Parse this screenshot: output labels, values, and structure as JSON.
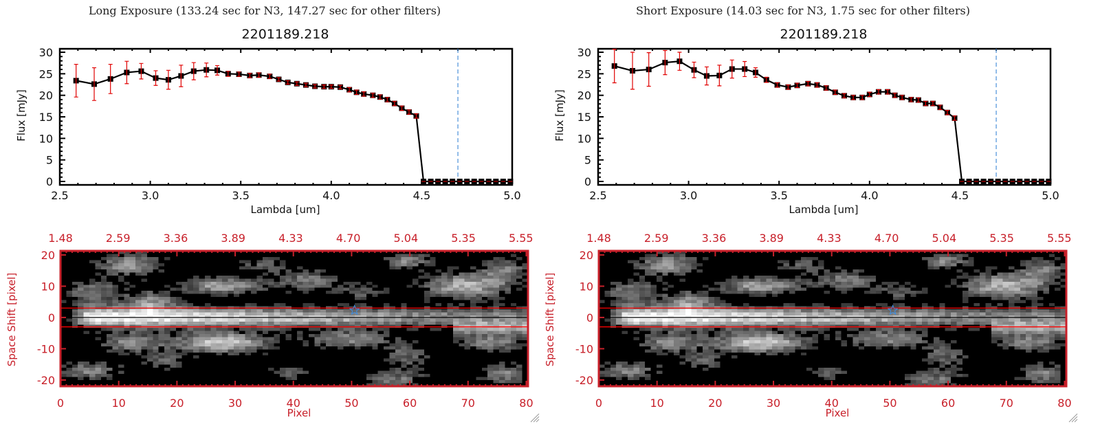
{
  "chart_data": [
    {
      "type": "line",
      "title": "Long Exposure (133.24 sec for N3, 147.27 sec for other filters)",
      "subtitle": "2201189.218",
      "xlabel": "Lambda [um]",
      "ylabel": "Flux [mJy]",
      "xlim": [
        2.5,
        5.0
      ],
      "ylim": [
        -0.8,
        30.8
      ],
      "xticks": [
        "2.5",
        "3.0",
        "3.5",
        "4.0",
        "4.5",
        "5.0"
      ],
      "yticks": [
        "0",
        "5",
        "10",
        "15",
        "20",
        "25",
        "30"
      ],
      "vline": 4.7,
      "colors": {
        "line": "#000000",
        "errorbar": "#e00000",
        "vline": "#4a90d9"
      },
      "x": [
        2.59,
        2.69,
        2.78,
        2.87,
        2.95,
        3.03,
        3.1,
        3.17,
        3.24,
        3.31,
        3.37,
        3.43,
        3.49,
        3.55,
        3.6,
        3.66,
        3.71,
        3.76,
        3.81,
        3.86,
        3.91,
        3.96,
        4.0,
        4.05,
        4.1,
        4.14,
        4.18,
        4.23,
        4.27,
        4.31,
        4.35,
        4.39,
        4.43,
        4.47,
        4.51,
        4.55,
        4.59,
        4.63,
        4.67,
        4.71,
        4.75,
        4.79,
        4.83,
        4.87,
        4.91,
        4.95,
        4.99
      ],
      "y": [
        23.4,
        22.6,
        23.8,
        25.3,
        25.6,
        24.0,
        23.6,
        24.5,
        25.6,
        25.9,
        25.8,
        25.0,
        24.9,
        24.6,
        24.7,
        24.4,
        23.7,
        23.0,
        22.7,
        22.4,
        22.1,
        22.0,
        22.0,
        21.9,
        21.3,
        20.7,
        20.3,
        20.0,
        19.6,
        19.0,
        18.1,
        17.0,
        16.1,
        15.2,
        0,
        0,
        0,
        0,
        0,
        0,
        0,
        0,
        0,
        0,
        0,
        0,
        0
      ],
      "yerr": [
        3.8,
        3.8,
        3.4,
        2.6,
        1.8,
        1.7,
        2.2,
        2.5,
        2.0,
        1.6,
        1.1,
        0.6,
        0.5,
        0.5,
        0.5,
        0.5,
        0.4,
        0.4,
        0.4,
        0.4,
        0.4,
        0.4,
        0.4,
        0.4,
        0.5,
        0.5,
        0.5,
        0.5,
        0.5,
        0.5,
        0.5,
        0.5,
        0.5,
        0.5,
        0.2,
        0.2,
        0.2,
        0.2,
        0.2,
        0.2,
        0.2,
        0.2,
        0.2,
        0.2,
        0.2,
        0.2,
        0.2
      ]
    },
    {
      "type": "line",
      "title": "Short Exposure (14.03 sec for N3, 1.75 sec for other filters)",
      "subtitle": "2201189.218",
      "xlabel": "Lambda [um]",
      "ylabel": "Flux [mJy]",
      "xlim": [
        2.5,
        5.0
      ],
      "ylim": [
        -0.8,
        30.8
      ],
      "xticks": [
        "2.5",
        "3.0",
        "3.5",
        "4.0",
        "4.5",
        "5.0"
      ],
      "yticks": [
        "0",
        "5",
        "10",
        "15",
        "20",
        "25",
        "30"
      ],
      "vline": 4.7,
      "colors": {
        "line": "#000000",
        "errorbar": "#e00000",
        "vline": "#4a90d9"
      },
      "x": [
        2.59,
        2.69,
        2.78,
        2.87,
        2.95,
        3.03,
        3.1,
        3.17,
        3.24,
        3.31,
        3.37,
        3.43,
        3.49,
        3.55,
        3.6,
        3.66,
        3.71,
        3.76,
        3.81,
        3.86,
        3.91,
        3.96,
        4.0,
        4.05,
        4.1,
        4.14,
        4.18,
        4.23,
        4.27,
        4.31,
        4.35,
        4.39,
        4.43,
        4.47,
        4.51,
        4.55,
        4.59,
        4.63,
        4.67,
        4.71,
        4.75,
        4.79,
        4.83,
        4.87,
        4.91,
        4.95,
        4.99
      ],
      "y": [
        26.8,
        25.7,
        26.0,
        27.6,
        27.9,
        25.9,
        24.5,
        24.6,
        26.1,
        26.1,
        25.3,
        23.6,
        22.4,
        21.9,
        22.3,
        22.7,
        22.4,
        21.7,
        20.7,
        19.9,
        19.5,
        19.5,
        20.2,
        20.8,
        20.8,
        20.0,
        19.5,
        19.0,
        18.9,
        18.1,
        18.1,
        17.2,
        16.0,
        14.7,
        0,
        0,
        0,
        0,
        0,
        0,
        0,
        0,
        0,
        0,
        0,
        0,
        0
      ],
      "yerr": [
        3.9,
        4.3,
        3.9,
        2.8,
        2.1,
        1.8,
        2.1,
        2.4,
        2.1,
        1.75,
        1.1,
        0.6,
        0.5,
        0.5,
        0.5,
        0.5,
        0.5,
        0.5,
        0.5,
        0.5,
        0.5,
        0.5,
        0.5,
        0.5,
        0.5,
        0.5,
        0.5,
        0.5,
        0.5,
        0.5,
        0.5,
        0.5,
        0.5,
        0.5,
        0.2,
        0.2,
        0.2,
        0.2,
        0.2,
        0.2,
        0.2,
        0.2,
        0.2,
        0.2,
        0.2,
        0.2,
        0.2
      ]
    },
    {
      "type": "heatmap",
      "xlabel": "Pixel",
      "ylabel": "Space Shift [pixel]",
      "xlim": [
        0,
        80.3
      ],
      "ylim": [
        -22,
        21.3
      ],
      "xticks": [
        "0",
        "10",
        "20",
        "30",
        "40",
        "50",
        "60",
        "70",
        "80"
      ],
      "yticks": [
        "-20",
        "-10",
        "0",
        "10",
        "20"
      ],
      "top_ticks": [
        "1.48",
        "2.59",
        "3.36",
        "3.89",
        "4.33",
        "4.70",
        "5.04",
        "5.35",
        "5.55"
      ],
      "aperture_lines": [
        -3,
        3
      ],
      "center_line": 0,
      "star_marker": {
        "x": 50.5,
        "y": 2.3
      },
      "colors": {
        "axes": "#c8202a",
        "aperture": "#ff0000",
        "star": "#3a8ee6"
      }
    },
    {
      "type": "heatmap",
      "xlabel": "Pixel",
      "ylabel": "Space Shift [pixel]",
      "xlim": [
        0,
        80.3
      ],
      "ylim": [
        -22,
        21.3
      ],
      "xticks": [
        "0",
        "10",
        "20",
        "30",
        "40",
        "50",
        "60",
        "70",
        "80"
      ],
      "yticks": [
        "-20",
        "-10",
        "0",
        "10",
        "20"
      ],
      "top_ticks": [
        "1.48",
        "2.59",
        "3.36",
        "3.89",
        "4.33",
        "4.70",
        "5.04",
        "5.35",
        "5.55"
      ],
      "aperture_lines": [
        -3,
        3
      ],
      "center_line": 0,
      "star_marker": {
        "x": 50.5,
        "y": 2.3
      },
      "colors": {
        "axes": "#c8202a",
        "aperture": "#ff0000",
        "star": "#3a8ee6"
      }
    }
  ]
}
